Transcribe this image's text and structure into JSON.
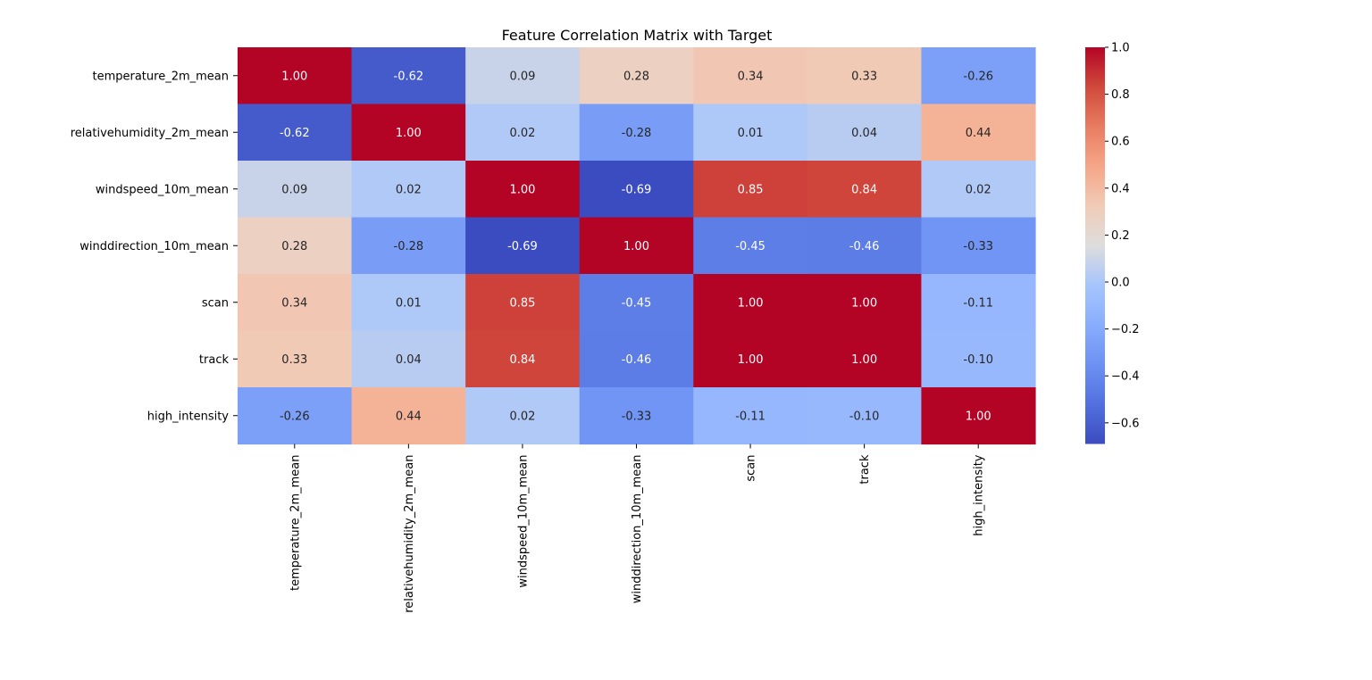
{
  "chart_data": {
    "type": "heatmap",
    "title": "Feature Correlation Matrix with Target",
    "xlabel": "",
    "ylabel": "",
    "row_labels": [
      "temperature_2m_mean",
      "relativehumidity_2m_mean",
      "windspeed_10m_mean",
      "winddirection_10m_mean",
      "scan",
      "track",
      "high_intensity"
    ],
    "col_labels": [
      "temperature_2m_mean",
      "relativehumidity_2m_mean",
      "windspeed_10m_mean",
      "winddirection_10m_mean",
      "scan",
      "track",
      "high_intensity"
    ],
    "values": [
      [
        1.0,
        -0.62,
        0.09,
        0.28,
        0.34,
        0.33,
        -0.26
      ],
      [
        -0.62,
        1.0,
        0.02,
        -0.28,
        0.01,
        0.04,
        0.44
      ],
      [
        0.09,
        0.02,
        1.0,
        -0.69,
        0.85,
        0.84,
        0.02
      ],
      [
        0.28,
        -0.28,
        -0.69,
        1.0,
        -0.45,
        -0.46,
        -0.33
      ],
      [
        0.34,
        0.01,
        0.85,
        -0.45,
        1.0,
        1.0,
        -0.11
      ],
      [
        0.33,
        0.04,
        0.84,
        -0.46,
        1.0,
        1.0,
        -0.1
      ],
      [
        -0.26,
        0.44,
        0.02,
        -0.33,
        -0.11,
        -0.1,
        1.0
      ]
    ],
    "annotation_format": "0.00",
    "colormap": "coolwarm",
    "colorbar": {
      "range": [
        -0.69,
        1.0
      ],
      "ticks": [
        1.0,
        0.8,
        0.6,
        0.4,
        0.2,
        0.0,
        -0.2,
        -0.4,
        -0.6
      ],
      "tick_labels": [
        "1.0",
        "0.8",
        "0.6",
        "0.4",
        "0.2",
        "0.0",
        "−0.2",
        "−0.4",
        "−0.6"
      ],
      "placement": "right"
    }
  }
}
